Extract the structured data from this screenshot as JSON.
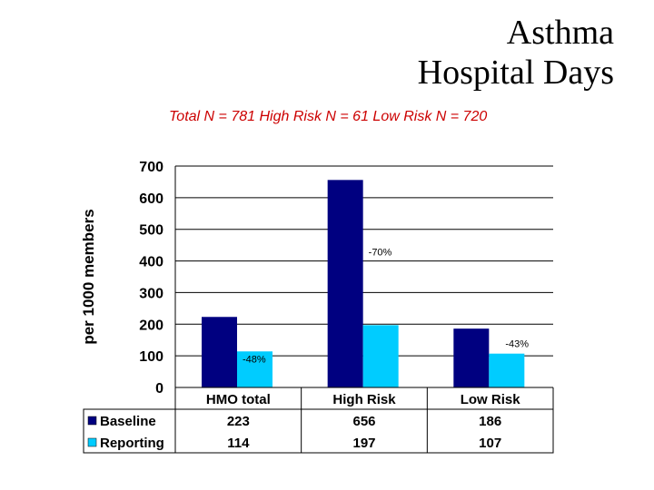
{
  "title_line1": "Asthma",
  "title_line2": "Hospital Days",
  "subtitle": "Total N = 781  High Risk N = 61 Low Risk N = 720",
  "chart_data": {
    "type": "bar",
    "categories": [
      "HMO total",
      "High Risk",
      "Low Risk"
    ],
    "series": [
      {
        "name": "Baseline",
        "values": [
          223,
          656,
          186
        ],
        "color": "#000080"
      },
      {
        "name": "Reporting",
        "values": [
          114,
          197,
          107
        ],
        "color": "#00ccff"
      }
    ],
    "annotations": [
      "-48%",
      "-70%",
      "-43%"
    ],
    "ylabel": "per 1000 members",
    "ylim": [
      0,
      700
    ],
    "yticks": [
      0,
      100,
      200,
      300,
      400,
      500,
      600,
      700
    ],
    "grid": true,
    "legend": "data-table"
  }
}
